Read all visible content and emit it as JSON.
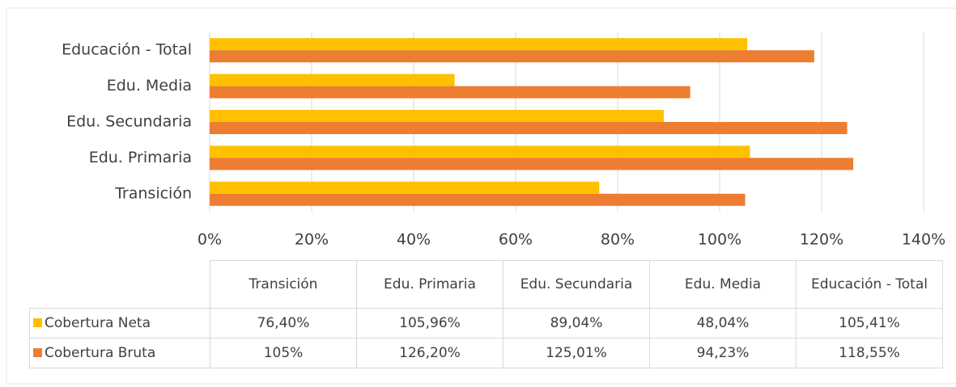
{
  "chart_data": {
    "type": "bar",
    "orientation": "horizontal",
    "categories": [
      "Transición",
      "Edu. Primaria",
      "Edu. Secundaria",
      "Edu. Media",
      "Educación - Total"
    ],
    "series": [
      {
        "name": "Cobertura Neta",
        "color": "#ffc000",
        "values": [
          76.4,
          105.96,
          89.04,
          48.04,
          105.41
        ],
        "value_labels": [
          "76,40%",
          "105,96%",
          "89,04%",
          "48,04%",
          "105,41%"
        ]
      },
      {
        "name": "Cobertura Bruta",
        "color": "#ed7d31",
        "values": [
          105,
          126.2,
          125.01,
          94.23,
          118.55
        ],
        "value_labels": [
          "105%",
          "126,20%",
          "125,01%",
          "94,23%",
          "118,55%"
        ]
      }
    ],
    "xlim": [
      0,
      140
    ],
    "xticks": [
      {
        "value": 0,
        "label": "0%"
      },
      {
        "value": 20,
        "label": "20%"
      },
      {
        "value": 40,
        "label": "40%"
      },
      {
        "value": 60,
        "label": "60%"
      },
      {
        "value": 80,
        "label": "80%"
      },
      {
        "value": 100,
        "label": "100%"
      },
      {
        "value": 120,
        "label": "120%"
      },
      {
        "value": 140,
        "label": "140%"
      }
    ],
    "grid": true
  }
}
